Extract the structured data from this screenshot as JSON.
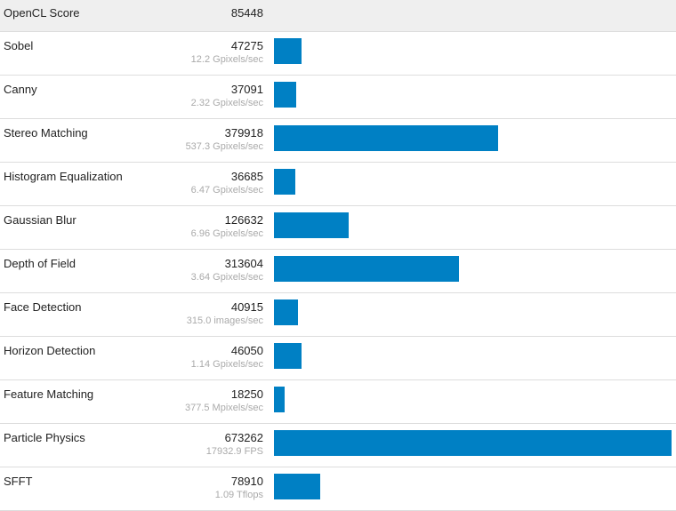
{
  "header": {
    "label": "OpenCL Score",
    "score": "85448"
  },
  "bar_color": "#0080c4",
  "max_score": 673262,
  "rows": [
    {
      "name": "Sobel",
      "score": "47275",
      "detail": "12.2 Gpixels/sec"
    },
    {
      "name": "Canny",
      "score": "37091",
      "detail": "2.32 Gpixels/sec"
    },
    {
      "name": "Stereo Matching",
      "score": "379918",
      "detail": "537.3 Gpixels/sec"
    },
    {
      "name": "Histogram Equalization",
      "score": "36685",
      "detail": "6.47 Gpixels/sec"
    },
    {
      "name": "Gaussian Blur",
      "score": "126632",
      "detail": "6.96 Gpixels/sec"
    },
    {
      "name": "Depth of Field",
      "score": "313604",
      "detail": "3.64 Gpixels/sec"
    },
    {
      "name": "Face Detection",
      "score": "40915",
      "detail": "315.0 images/sec"
    },
    {
      "name": "Horizon Detection",
      "score": "46050",
      "detail": "1.14 Gpixels/sec"
    },
    {
      "name": "Feature Matching",
      "score": "18250",
      "detail": "377.5 Mpixels/sec"
    },
    {
      "name": "Particle Physics",
      "score": "673262",
      "detail": "17932.9 FPS"
    },
    {
      "name": "SFFT",
      "score": "78910",
      "detail": "1.09 Tflops"
    }
  ]
}
